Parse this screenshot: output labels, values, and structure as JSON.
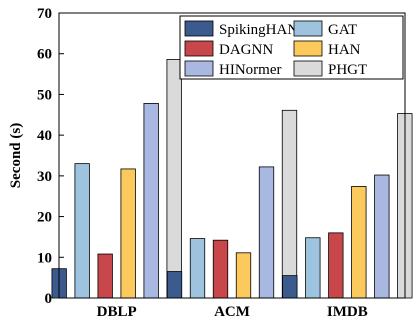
{
  "chart_data": {
    "type": "bar",
    "title": "",
    "xlabel": "",
    "ylabel": "Second (s)",
    "ylim": [
      0,
      70
    ],
    "yticks": [
      0,
      10,
      20,
      30,
      40,
      50,
      60,
      70
    ],
    "grid": false,
    "legend_position": "top-right",
    "categories": [
      "DBLP",
      "ACM",
      "IMDB"
    ],
    "series": [
      {
        "name": "SpikingHAN",
        "color": "#3b5b8f",
        "values": [
          7.2,
          6.5,
          5.5
        ]
      },
      {
        "name": "GAT",
        "color": "#9ec3df",
        "values": [
          33,
          14.6,
          14.8
        ]
      },
      {
        "name": "DAGNN",
        "color": "#c8474a",
        "values": [
          10.8,
          14.2,
          16
        ]
      },
      {
        "name": "HAN",
        "color": "#fcc95c",
        "values": [
          31.7,
          11.1,
          27.4
        ]
      },
      {
        "name": "HINormer",
        "color": "#a9b8e0",
        "values": [
          47.8,
          32.2,
          30.2
        ]
      },
      {
        "name": "PHGT",
        "color": "#dadada",
        "values": [
          58.6,
          46.1,
          45.3
        ]
      }
    ]
  }
}
